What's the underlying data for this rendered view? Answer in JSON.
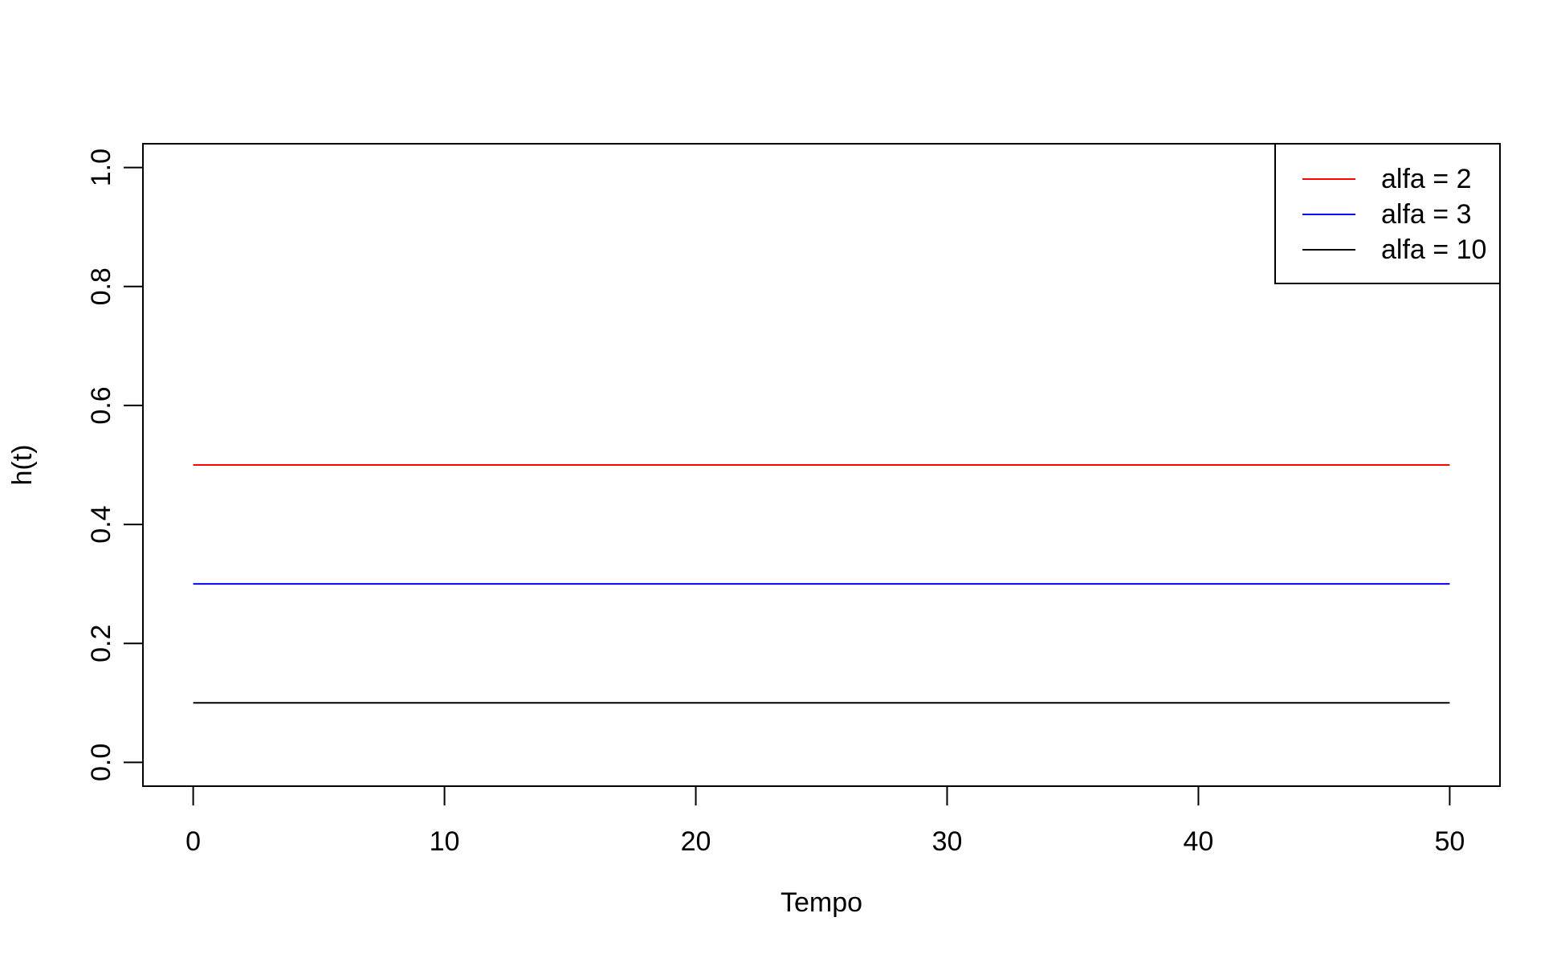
{
  "chart_data": {
    "type": "line",
    "title": "",
    "xlabel": "Tempo",
    "ylabel": "h(t)",
    "xlim": [
      -2,
      52
    ],
    "ylim": [
      -0.04,
      1.04
    ],
    "xticks": [
      0,
      10,
      20,
      30,
      40,
      50
    ],
    "yticks": [
      0.0,
      0.2,
      0.4,
      0.6,
      0.8,
      1.0
    ],
    "xtick_labels": [
      "0",
      "10",
      "20",
      "30",
      "40",
      "50"
    ],
    "ytick_labels": [
      "0.0",
      "0.2",
      "0.4",
      "0.6",
      "0.8",
      "1.0"
    ],
    "grid": false,
    "legend_position": "top-right",
    "series": [
      {
        "name": "alfa = 2",
        "color": "#ff0000",
        "x": [
          0,
          50
        ],
        "y": [
          0.5,
          0.5
        ]
      },
      {
        "name": "alfa = 3",
        "color": "#0000ff",
        "x": [
          0,
          50
        ],
        "y": [
          0.3,
          0.3
        ]
      },
      {
        "name": "alfa = 10",
        "color": "#000000",
        "x": [
          0,
          50
        ],
        "y": [
          0.1,
          0.1
        ]
      }
    ]
  }
}
